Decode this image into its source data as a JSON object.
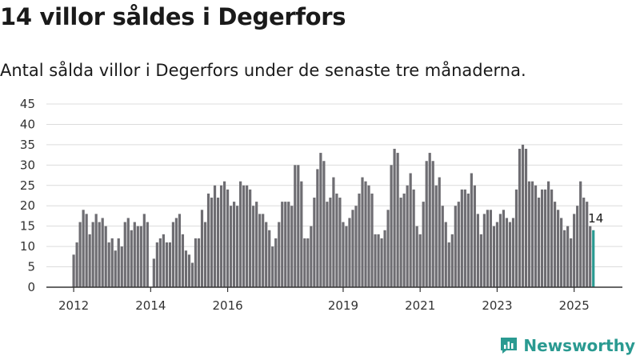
{
  "title": "14 villor såldes i Degerfors",
  "subtitle": "Antal sålda villor i Degerfors under de senaste tre månaderna.",
  "brand": {
    "name": "Newsworthy",
    "color": "#2a9a91"
  },
  "colors": {
    "bar": "#6e6d72",
    "highlight": "#2a9a91",
    "grid": "#dcdcdc",
    "axis": "#333333"
  },
  "chart_data": {
    "type": "bar",
    "xlabel": "",
    "ylabel": "",
    "ylim": [
      0,
      45
    ],
    "yticks": [
      0,
      5,
      10,
      15,
      20,
      25,
      30,
      35,
      40,
      45
    ],
    "xticks": [
      "2012",
      "2014",
      "2016",
      "2019",
      "2021",
      "2023",
      "2025"
    ],
    "start_month": "2012-01",
    "values": [
      8,
      11,
      16,
      19,
      18,
      13,
      16,
      18,
      16,
      17,
      15,
      11,
      12,
      9,
      12,
      10,
      16,
      17,
      14,
      16,
      15,
      15,
      18,
      16,
      0,
      7,
      11,
      12,
      13,
      11,
      11,
      16,
      17,
      18,
      13,
      9,
      8,
      6,
      12,
      12,
      19,
      16,
      23,
      22,
      25,
      22,
      25,
      26,
      24,
      20,
      21,
      20,
      26,
      25,
      25,
      24,
      20,
      21,
      18,
      18,
      16,
      14,
      10,
      12,
      16,
      21,
      21,
      21,
      20,
      30,
      30,
      26,
      12,
      12,
      15,
      22,
      29,
      33,
      31,
      21,
      22,
      27,
      23,
      22,
      16,
      15,
      17,
      19,
      20,
      23,
      27,
      26,
      25,
      23,
      13,
      13,
      12,
      14,
      19,
      30,
      34,
      33,
      22,
      23,
      25,
      28,
      24,
      15,
      13,
      21,
      31,
      33,
      31,
      25,
      27,
      20,
      16,
      11,
      13,
      20,
      21,
      24,
      24,
      23,
      28,
      25,
      18,
      13,
      18,
      19,
      19,
      15,
      16,
      18,
      19,
      17,
      16,
      17,
      24,
      34,
      35,
      34,
      26,
      26,
      25,
      22,
      24,
      24,
      26,
      24,
      21,
      19,
      17,
      14,
      15,
      12,
      18,
      20,
      26,
      22,
      21,
      15,
      14
    ],
    "highlight_label": "14"
  }
}
